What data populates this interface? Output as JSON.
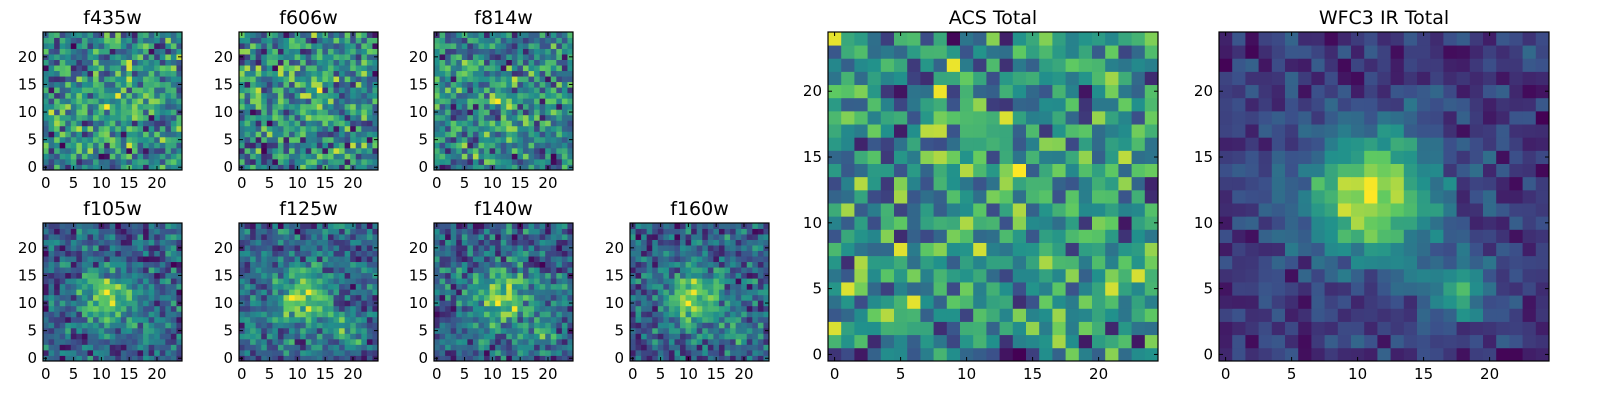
{
  "figure": {
    "type": "image-grid",
    "colormap": "viridis",
    "colors": [
      "#440154",
      "#3b528b",
      "#21918c",
      "#5ec962",
      "#fde725"
    ]
  },
  "chart_data": [
    {
      "type": "heatmap",
      "id": "f435w",
      "title": "f435w",
      "grid": 25,
      "xticks": [
        0,
        5,
        10,
        15,
        20
      ],
      "yticks": [
        0,
        5,
        10,
        15,
        20
      ],
      "xlim": [
        -0.5,
        24.5
      ],
      "ylim": [
        -0.5,
        24.5
      ],
      "noise": 0.8,
      "blobs": [
        {
          "x": 12,
          "y": 12,
          "amp": 0.15,
          "sigma": 5
        }
      ],
      "seed": 11
    },
    {
      "type": "heatmap",
      "id": "f606w",
      "title": "f606w",
      "grid": 25,
      "xticks": [
        0,
        5,
        10,
        15,
        20
      ],
      "yticks": [
        0,
        5,
        10,
        15,
        20
      ],
      "xlim": [
        -0.5,
        24.5
      ],
      "ylim": [
        -0.5,
        24.5
      ],
      "noise": 0.8,
      "blobs": [
        {
          "x": 11,
          "y": 12,
          "amp": 0.15,
          "sigma": 5
        }
      ],
      "seed": 23
    },
    {
      "type": "heatmap",
      "id": "f814w",
      "title": "f814w",
      "grid": 25,
      "xticks": [
        0,
        5,
        10,
        15,
        20
      ],
      "yticks": [
        0,
        5,
        10,
        15,
        20
      ],
      "xlim": [
        -0.5,
        24.5
      ],
      "ylim": [
        -0.5,
        24.5
      ],
      "noise": 0.75,
      "blobs": [
        {
          "x": 11,
          "y": 12,
          "amp": 0.25,
          "sigma": 4
        }
      ],
      "seed": 37
    },
    {
      "type": "heatmap",
      "id": "f105w",
      "title": "f105w",
      "grid": 25,
      "xticks": [
        0,
        5,
        10,
        15,
        20
      ],
      "yticks": [
        0,
        5,
        10,
        15,
        20
      ],
      "xlim": [
        -0.5,
        24.5
      ],
      "ylim": [
        -0.5,
        24.5
      ],
      "noise": 0.55,
      "blobs": [
        {
          "x": 11,
          "y": 11,
          "amp": 0.75,
          "sigma": 3.5
        },
        {
          "x": 19,
          "y": 5,
          "amp": 0.4,
          "sigma": 2
        }
      ],
      "seed": 41
    },
    {
      "type": "heatmap",
      "id": "f125w",
      "title": "f125w",
      "grid": 25,
      "xticks": [
        0,
        5,
        10,
        15,
        20
      ],
      "yticks": [
        0,
        5,
        10,
        15,
        20
      ],
      "xlim": [
        -0.5,
        24.5
      ],
      "ylim": [
        -0.5,
        24.5
      ],
      "noise": 0.55,
      "blobs": [
        {
          "x": 11,
          "y": 11,
          "amp": 0.75,
          "sigma": 3.5
        },
        {
          "x": 19,
          "y": 5,
          "amp": 0.4,
          "sigma": 2
        }
      ],
      "seed": 53
    },
    {
      "type": "heatmap",
      "id": "f140w",
      "title": "f140w",
      "grid": 25,
      "xticks": [
        0,
        5,
        10,
        15,
        20
      ],
      "yticks": [
        0,
        5,
        10,
        15,
        20
      ],
      "xlim": [
        -0.5,
        24.5
      ],
      "ylim": [
        -0.5,
        24.5
      ],
      "noise": 0.55,
      "blobs": [
        {
          "x": 12,
          "y": 11,
          "amp": 0.75,
          "sigma": 3.5
        },
        {
          "x": 19,
          "y": 5,
          "amp": 0.45,
          "sigma": 2
        }
      ],
      "seed": 67
    },
    {
      "type": "heatmap",
      "id": "f160w",
      "title": "f160w",
      "grid": 25,
      "xticks": [
        0,
        5,
        10,
        15,
        20
      ],
      "yticks": [
        0,
        5,
        10,
        15,
        20
      ],
      "xlim": [
        -0.5,
        24.5
      ],
      "ylim": [
        -0.5,
        24.5
      ],
      "noise": 0.5,
      "blobs": [
        {
          "x": 11,
          "y": 11,
          "amp": 0.8,
          "sigma": 3.5
        },
        {
          "x": 19,
          "y": 5,
          "amp": 0.45,
          "sigma": 2
        }
      ],
      "seed": 79
    },
    {
      "type": "heatmap",
      "id": "acs-total",
      "title": "ACS Total",
      "grid": 25,
      "xticks": [
        0,
        5,
        10,
        15,
        20
      ],
      "yticks": [
        0,
        5,
        10,
        15,
        20
      ],
      "xlim": [
        -0.5,
        24.5
      ],
      "ylim": [
        -0.5,
        24.5
      ],
      "noise": 0.55,
      "base": 0.25,
      "blobs": [
        {
          "x": 12,
          "y": 12,
          "amp": 0.1,
          "sigma": 5
        }
      ],
      "seed": 97
    },
    {
      "type": "heatmap",
      "id": "wfc3-ir-total",
      "title": "WFC3 IR Total",
      "grid": 25,
      "xticks": [
        0,
        5,
        10,
        15,
        20
      ],
      "yticks": [
        0,
        5,
        10,
        15,
        20
      ],
      "xlim": [
        -0.5,
        24.5
      ],
      "ylim": [
        -0.5,
        24.5
      ],
      "noise": 0.25,
      "base": 0.05,
      "blobs": [
        {
          "x": 11,
          "y": 12,
          "amp": 1.0,
          "sigma": 3.5
        },
        {
          "x": 18,
          "y": 5,
          "amp": 0.6,
          "sigma": 1.6
        }
      ],
      "seed": 101
    }
  ]
}
